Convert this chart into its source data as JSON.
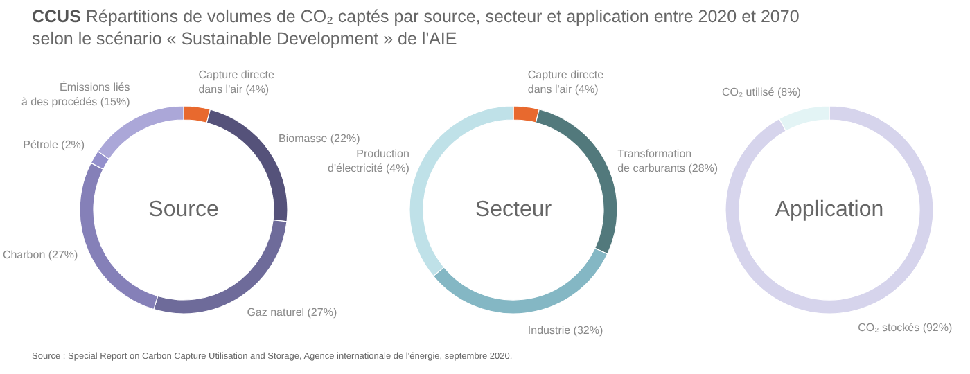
{
  "chart_data": [
    {
      "type": "donut",
      "title": "Source",
      "annotations": [
        "CCUS Répartitions de volumes de CO₂ captés par source, secteur et application entre 2020 et 2070\nselon le scénario « Sustainable Development » de l'AIE"
      ],
      "categories": [
        "Capture directe\ndans l'air (4%)",
        "Biomasse (22%)",
        "Gaz naturel (27%)",
        "Charbon (27%)",
        "Pétrole (2%)",
        "Émissions liés\nà des procédés (15%)"
      ],
      "values": [
        4,
        22,
        27,
        27,
        2,
        15
      ],
      "colors": [
        "#e8692e",
        "#55527a",
        "#6e6b9a",
        "#8580b8",
        "#9490cc",
        "#aba7d8"
      ]
    },
    {
      "type": "donut",
      "title": "Secteur",
      "categories": [
        "Capture directe\ndans l'air (4%)",
        "Transformation\nde carburants (28%)",
        "Industrie (32%)",
        "Production\nd'électricité (4%)"
      ],
      "values": [
        4,
        28,
        32,
        36
      ],
      "colors": [
        "#e8692e",
        "#52797c",
        "#84b7c4",
        "#bfe1e8"
      ]
    },
    {
      "type": "donut",
      "title": "Application",
      "annotations": [
        "Source : Special Report on Carbon Capture Utilisation and Storage, Agence internationale de l'énergie, septembre 2020."
      ],
      "categories": [
        "CO₂ stockés (92%)",
        "CO₂ utilisé (8%)"
      ],
      "values": [
        92,
        8
      ],
      "colors": [
        "#d6d4ec",
        "#e3f4f5"
      ]
    }
  ]
}
